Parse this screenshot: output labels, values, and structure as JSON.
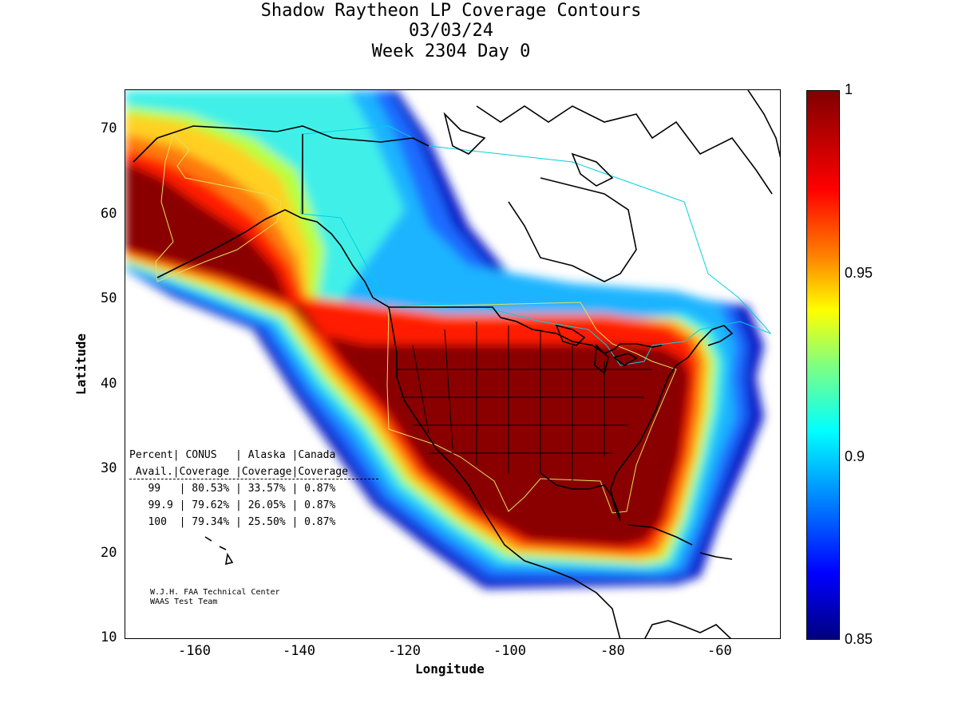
{
  "title": {
    "line1": "Shadow Raytheon LP Coverage Contours",
    "line2": "03/03/24",
    "line3": "Week 2304 Day 0"
  },
  "axes": {
    "xlabel": "Longitude",
    "ylabel": "Latitude",
    "xlim": [
      -175,
      -50
    ],
    "ylim": [
      10,
      75
    ],
    "xticks": [
      -160,
      -140,
      -120,
      -100,
      -80,
      -60
    ],
    "yticks": [
      10,
      20,
      30,
      40,
      50,
      60,
      70
    ],
    "xtick_labels": [
      "-160",
      "-140",
      "-120",
      "-100",
      "-80",
      "-60"
    ],
    "ytick_labels": [
      "10",
      "20",
      "30",
      "40",
      "50",
      "60",
      "70"
    ]
  },
  "colorbar": {
    "min": 0.85,
    "max": 1,
    "labels": [
      "1",
      "0.95",
      "0.9",
      "0.85"
    ],
    "colormap": "jet"
  },
  "stats_table": {
    "header1": "Percent| CONUS   | Alaska |Canada",
    "header2": " Avail.|Coverage |Coverage|Coverage",
    "rows": [
      "   99   | 80.53% | 33.57% | 0.87%",
      "   99.9 | 79.62% | 26.05% | 0.87%",
      "   100  | 79.34% | 25.50% | 0.87%"
    ]
  },
  "credits": {
    "line1": "W.J.H. FAA Technical Center",
    "line2": "WAAS Test Team"
  },
  "colors": {
    "coverage_full": "#800000",
    "coverage_high": "#ff0000",
    "coverage_mid": "#ffff00",
    "coverage_low_mid": "#00ffff",
    "coverage_low": "#000080",
    "service_outline": "#e0e060",
    "canada_outline": "#00d0e0"
  }
}
